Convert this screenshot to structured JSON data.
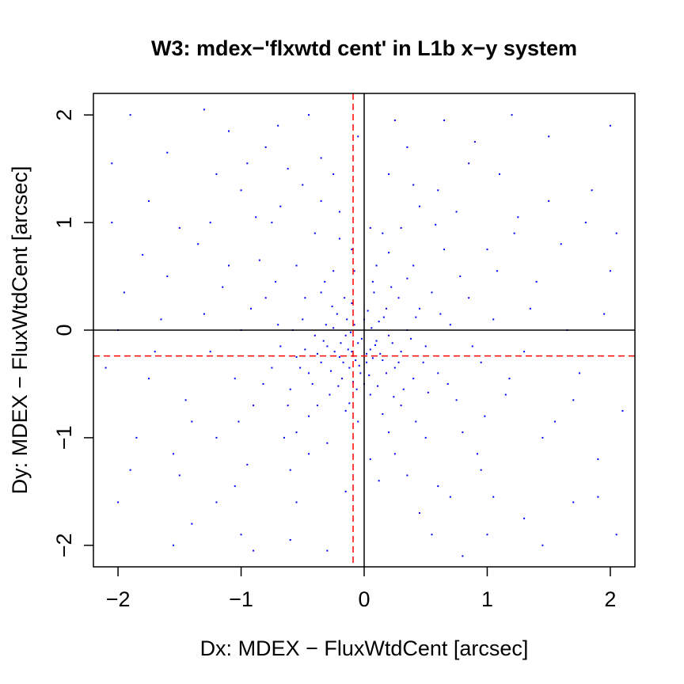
{
  "chart_data": {
    "type": "scatter",
    "title": "W3: mdex−'flxwtd cent' in L1b x−y system",
    "xlabel": "Dx: MDEX − FluxWtdCent [arcsec]",
    "ylabel": "Dy: MDEX − FluxWtdCent [arcsec]",
    "xlim": [
      -2.2,
      2.2
    ],
    "ylim": [
      -2.2,
      2.2
    ],
    "xticks": [
      -2,
      -1,
      0,
      1,
      2
    ],
    "yticks": [
      -2,
      -1,
      0,
      1,
      2
    ],
    "xtick_labels": [
      "−2",
      "−1",
      "0",
      "1",
      "2"
    ],
    "ytick_labels": [
      "−2",
      "−1",
      "0",
      "1",
      "2"
    ],
    "point_color": "#0000ff",
    "reference_lines": [
      {
        "orientation": "vertical",
        "value": 0,
        "color": "#000000",
        "style": "solid"
      },
      {
        "orientation": "horizontal",
        "value": 0,
        "color": "#000000",
        "style": "solid"
      },
      {
        "orientation": "vertical",
        "value": -0.09,
        "color": "#ff0000",
        "style": "dashed"
      },
      {
        "orientation": "horizontal",
        "value": -0.24,
        "color": "#ff0000",
        "style": "dashed"
      }
    ],
    "series": [
      {
        "points": [
          [
            -0.05,
            -0.12
          ],
          [
            -0.1,
            -0.2
          ],
          [
            0.02,
            -0.3
          ],
          [
            -0.15,
            -0.05
          ],
          [
            -0.08,
            0.05
          ],
          [
            0.05,
            -0.18
          ],
          [
            -0.2,
            -0.25
          ],
          [
            -0.12,
            -0.35
          ],
          [
            0.1,
            -0.1
          ],
          [
            -0.03,
            -0.4
          ],
          [
            -0.25,
            0.02
          ],
          [
            0.15,
            -0.28
          ],
          [
            -0.18,
            -0.45
          ],
          [
            0.0,
            0.1
          ],
          [
            -0.3,
            -0.15
          ],
          [
            0.2,
            -0.05
          ],
          [
            -0.06,
            -0.55
          ],
          [
            -0.35,
            -0.3
          ],
          [
            0.12,
            0.08
          ],
          [
            -0.22,
            0.15
          ],
          [
            0.25,
            -0.35
          ],
          [
            -0.4,
            -0.05
          ],
          [
            0.05,
            -0.6
          ],
          [
            -0.1,
            0.25
          ],
          [
            0.3,
            -0.2
          ],
          [
            -0.45,
            -0.4
          ],
          [
            0.18,
            0.2
          ],
          [
            -0.28,
            -0.6
          ],
          [
            0.35,
            0.0
          ],
          [
            -0.5,
            0.1
          ],
          [
            0.08,
            0.35
          ],
          [
            -0.15,
            -0.75
          ],
          [
            0.4,
            -0.45
          ],
          [
            -0.55,
            -0.25
          ],
          [
            0.22,
            0.4
          ],
          [
            -0.35,
            0.35
          ],
          [
            0.5,
            -0.15
          ],
          [
            -0.05,
            -0.85
          ],
          [
            0.45,
            0.2
          ],
          [
            -0.6,
            -0.55
          ],
          [
            0.3,
            -0.7
          ],
          [
            -0.7,
            0.05
          ],
          [
            0.1,
            0.6
          ],
          [
            -0.25,
            0.55
          ],
          [
            0.6,
            -0.4
          ],
          [
            -0.45,
            -0.8
          ],
          [
            0.55,
            0.35
          ],
          [
            -0.75,
            -0.35
          ],
          [
            0.2,
            -0.95
          ],
          [
            -0.1,
            0.75
          ],
          [
            0.7,
            0.05
          ],
          [
            -0.8,
            0.3
          ],
          [
            0.4,
            0.6
          ],
          [
            -0.55,
            0.6
          ],
          [
            0.75,
            -0.65
          ],
          [
            -0.3,
            -1.05
          ],
          [
            0.15,
            0.9
          ],
          [
            -0.9,
            -0.7
          ],
          [
            0.85,
            0.3
          ],
          [
            -0.65,
            -1.0
          ],
          [
            0.5,
            -1.0
          ],
          [
            -1.0,
            0.0
          ],
          [
            0.3,
            0.95
          ],
          [
            -0.4,
            0.9
          ],
          [
            0.95,
            -0.3
          ],
          [
            -0.85,
            0.65
          ],
          [
            0.65,
            0.75
          ],
          [
            -1.05,
            -0.45
          ],
          [
            0.05,
            -1.2
          ],
          [
            -0.2,
            1.1
          ],
          [
            1.05,
            0.1
          ],
          [
            -0.6,
            -1.3
          ],
          [
            0.8,
            -0.95
          ],
          [
            -1.15,
            0.4
          ],
          [
            0.45,
            1.15
          ],
          [
            -0.75,
            1.0
          ],
          [
            1.15,
            -0.6
          ],
          [
            -1.2,
            -1.0
          ],
          [
            0.35,
            -1.35
          ],
          [
            -1.3,
            0.15
          ],
          [
            1.0,
            0.75
          ],
          [
            -0.95,
            -1.25
          ],
          [
            0.6,
            1.3
          ],
          [
            -0.5,
            1.35
          ],
          [
            1.3,
            -0.2
          ],
          [
            -1.35,
            0.8
          ],
          [
            0.95,
            -1.3
          ],
          [
            -0.15,
            -1.5
          ],
          [
            1.4,
            0.45
          ],
          [
            -1.45,
            -0.65
          ],
          [
            0.2,
            1.45
          ],
          [
            -1.0,
            1.3
          ],
          [
            1.25,
            1.05
          ],
          [
            -1.5,
            -1.35
          ],
          [
            0.7,
            -1.55
          ],
          [
            -0.35,
            1.6
          ],
          [
            1.55,
            -0.85
          ],
          [
            -1.6,
            0.5
          ],
          [
            1.1,
            1.45
          ],
          [
            -1.2,
            -1.6
          ],
          [
            0.45,
            -1.7
          ],
          [
            -1.7,
            -0.2
          ],
          [
            1.6,
            0.8
          ],
          [
            -0.8,
            1.7
          ],
          [
            1.75,
            -0.4
          ],
          [
            -1.75,
            1.2
          ],
          [
            0.9,
            1.75
          ],
          [
            -1.4,
            -1.8
          ],
          [
            1.3,
            -1.75
          ],
          [
            -0.05,
            1.8
          ],
          [
            1.85,
            1.3
          ],
          [
            -1.85,
            -1.0
          ],
          [
            0.55,
            -1.9
          ],
          [
            -1.1,
            1.85
          ],
          [
            1.9,
            -1.2
          ],
          [
            -1.95,
            0.35
          ],
          [
            1.5,
            1.8
          ],
          [
            -0.6,
            -1.95
          ],
          [
            1.95,
            0.15
          ],
          [
            -1.6,
            1.65
          ],
          [
            0.25,
            1.95
          ],
          [
            -2.0,
            -1.6
          ],
          [
            1.7,
            -1.6
          ],
          [
            -0.3,
            -2.05
          ],
          [
            2.05,
            0.9
          ],
          [
            -2.05,
            1.55
          ],
          [
            1.2,
            2.0
          ],
          [
            -1.3,
            2.05
          ],
          [
            2.1,
            -0.75
          ],
          [
            -2.1,
            -0.35
          ],
          [
            0.8,
            -2.1
          ],
          [
            -0.9,
            -2.05
          ],
          [
            2.0,
            1.9
          ],
          [
            -1.9,
            2.0
          ],
          [
            0.02,
            -0.22
          ],
          [
            -0.07,
            -0.28
          ],
          [
            -0.13,
            -0.18
          ],
          [
            0.07,
            -0.26
          ],
          [
            -0.02,
            -0.08
          ],
          [
            -0.17,
            -0.3
          ],
          [
            0.04,
            -0.42
          ],
          [
            -0.11,
            -0.02
          ],
          [
            -0.24,
            -0.2
          ],
          [
            0.13,
            -0.22
          ],
          [
            -0.04,
            -0.33
          ],
          [
            -0.19,
            -0.12
          ],
          [
            0.09,
            -0.14
          ],
          [
            -0.27,
            -0.38
          ],
          [
            0.0,
            -0.5
          ],
          [
            -0.14,
            0.1
          ],
          [
            0.18,
            -0.4
          ],
          [
            -0.33,
            -0.1
          ],
          [
            0.06,
            0.02
          ],
          [
            -0.09,
            -0.48
          ],
          [
            0.23,
            -0.12
          ],
          [
            -0.31,
            0.05
          ],
          [
            0.11,
            -0.52
          ],
          [
            -0.21,
            -0.52
          ],
          [
            0.28,
            -0.3
          ],
          [
            -0.38,
            -0.22
          ],
          [
            0.03,
            0.18
          ],
          [
            -0.16,
            0.3
          ],
          [
            0.32,
            -0.55
          ],
          [
            -0.42,
            -0.5
          ],
          [
            0.16,
            0.12
          ],
          [
            -0.26,
            0.22
          ],
          [
            0.38,
            -0.08
          ],
          [
            -0.48,
            -0.18
          ],
          [
            0.24,
            -0.62
          ],
          [
            -0.12,
            -0.68
          ],
          [
            0.42,
            0.12
          ],
          [
            -0.52,
            -0.35
          ],
          [
            0.07,
            0.45
          ],
          [
            -0.32,
            0.45
          ],
          [
            0.48,
            -0.3
          ],
          [
            -0.58,
            0.0
          ],
          [
            0.28,
            0.3
          ],
          [
            -0.38,
            -0.7
          ],
          [
            0.15,
            -0.78
          ],
          [
            -0.08,
            0.55
          ],
          [
            0.52,
            -0.58
          ],
          [
            -0.62,
            -0.7
          ],
          [
            0.35,
            0.48
          ],
          [
            -0.48,
            0.3
          ],
          [
            0.62,
            0.15
          ],
          [
            -0.68,
            -0.15
          ],
          [
            0.2,
            0.72
          ],
          [
            -0.2,
            0.85
          ],
          [
            0.68,
            -0.5
          ],
          [
            -0.72,
            0.45
          ],
          [
            0.42,
            -0.85
          ],
          [
            -0.55,
            -0.95
          ],
          [
            0.78,
            0.5
          ],
          [
            -0.82,
            -0.5
          ],
          [
            0.05,
            0.95
          ],
          [
            -0.35,
            1.2
          ],
          [
            0.88,
            -0.15
          ],
          [
            -0.92,
            0.2
          ],
          [
            0.58,
            0.98
          ],
          [
            -0.68,
            1.15
          ],
          [
            0.98,
            -0.8
          ],
          [
            -1.02,
            -0.85
          ],
          [
            0.25,
            -1.15
          ],
          [
            -0.45,
            -1.15
          ],
          [
            1.08,
            0.55
          ],
          [
            -1.1,
            0.6
          ],
          [
            0.75,
            1.1
          ],
          [
            -0.88,
            1.05
          ],
          [
            1.18,
            -0.45
          ],
          [
            -1.25,
            -0.2
          ],
          [
            0.4,
            1.35
          ],
          [
            -0.62,
            1.5
          ],
          [
            1.22,
            0.9
          ],
          [
            -1.25,
            1.0
          ],
          [
            0.92,
            -1.15
          ],
          [
            -1.05,
            -1.45
          ],
          [
            1.35,
            0.2
          ],
          [
            -1.4,
            -0.85
          ],
          [
            0.12,
            -1.4
          ],
          [
            -0.25,
            1.45
          ],
          [
            1.45,
            -1.0
          ],
          [
            -1.5,
            0.95
          ],
          [
            0.85,
            1.55
          ],
          [
            -0.95,
            1.55
          ],
          [
            1.5,
            1.2
          ],
          [
            -1.55,
            -1.15
          ],
          [
            0.6,
            -1.45
          ],
          [
            -0.55,
            -1.6
          ],
          [
            1.65,
            0.0
          ],
          [
            -1.65,
            0.1
          ],
          [
            1.05,
            -1.55
          ],
          [
            -1.2,
            1.45
          ],
          [
            1.7,
            -0.65
          ],
          [
            -1.75,
            -0.45
          ],
          [
            0.35,
            1.7
          ],
          [
            -0.7,
            1.9
          ],
          [
            1.8,
            1.0
          ],
          [
            -1.8,
            0.7
          ],
          [
            1.0,
            -1.9
          ],
          [
            -1.0,
            -1.9
          ],
          [
            1.9,
            -1.55
          ],
          [
            -1.9,
            -1.3
          ],
          [
            0.65,
            1.95
          ],
          [
            -0.45,
            2.0
          ],
          [
            2.0,
            0.55
          ],
          [
            -2.0,
            0.0
          ],
          [
            1.45,
            -2.0
          ],
          [
            -1.55,
            -2.0
          ],
          [
            2.05,
            -1.9
          ],
          [
            -2.05,
            1.0
          ]
        ]
      }
    ]
  }
}
